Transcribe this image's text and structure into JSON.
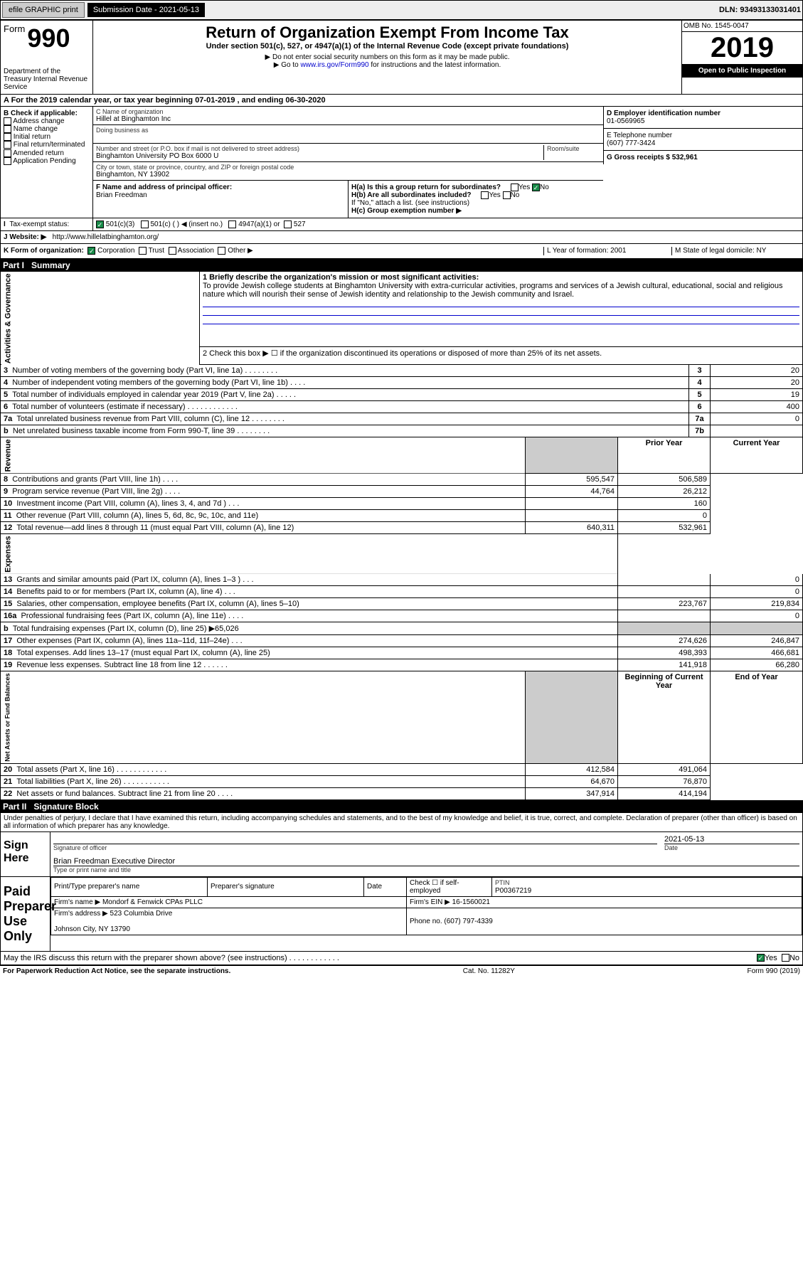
{
  "header": {
    "efile_label": "efile GRAPHIC print",
    "submission_label": "Submission Date - 2021-05-13",
    "dln_label": "DLN: 93493133031401",
    "omb": "OMB No. 1545-0047",
    "form_word": "Form",
    "form_number": "990",
    "title": "Return of Organization Exempt From Income Tax",
    "subtitle": "Under section 501(c), 527, or 4947(a)(1) of the Internal Revenue Code (except private foundations)",
    "note1": "▶ Do not enter social security numbers on this form as it may be made public.",
    "note2_prefix": "▶ Go to ",
    "note2_link": "www.irs.gov/Form990",
    "note2_suffix": " for instructions and the latest information.",
    "year": "2019",
    "open_public": "Open to Public Inspection",
    "dept": "Department of the Treasury\nInternal Revenue Service"
  },
  "rowA": "A   For the 2019 calendar year, or tax year beginning 07-01-2019    , and ending 06-30-2020",
  "boxB": {
    "label": "B Check if applicable:",
    "items": [
      "Address change",
      "Name change",
      "Initial return",
      "Final return/terminated",
      "Amended return",
      "Application Pending"
    ]
  },
  "boxC": {
    "name_label": "C Name of organization",
    "name": "Hillel at Binghamton Inc",
    "dba_label": "Doing business as",
    "addr_label": "Number and street (or P.O. box if mail is not delivered to street address)",
    "room_label": "Room/suite",
    "addr": "Binghamton University PO Box 6000 U",
    "city_label": "City or town, state or province, country, and ZIP or foreign postal code",
    "city": "Binghamton, NY  13902"
  },
  "boxD": {
    "label": "D Employer identification number",
    "value": "01-0569965"
  },
  "boxE": {
    "label": "E Telephone number",
    "value": "(607) 777-3424"
  },
  "boxG": {
    "label": "G Gross receipts $ 532,961"
  },
  "boxF": {
    "label": "F  Name and address of principal officer:",
    "name": "Brian Freedman"
  },
  "boxH": {
    "ha": "H(a)  Is this a group return for subordinates?",
    "hb": "H(b)  Are all subordinates included?",
    "hb_note": "If \"No,\" attach a list. (see instructions)",
    "hc": "H(c)  Group exemption number ▶",
    "yes": "Yes",
    "no": "No"
  },
  "boxI": {
    "label": "Tax-exempt status:",
    "c501c3": "501(c)(3)",
    "c501c": "501(c) (   ) ◀ (insert no.)",
    "c4947": "4947(a)(1) or",
    "c527": "527"
  },
  "boxJ": {
    "label": "J    Website: ▶",
    "url": "http://www.hillelatbinghamton.org/"
  },
  "boxK": {
    "label": "K Form of organization:",
    "corp": "Corporation",
    "trust": "Trust",
    "assoc": "Association",
    "other": "Other ▶",
    "L": "L Year of formation: 2001",
    "M": "M State of legal domicile: NY"
  },
  "part1": {
    "header_partno": "Part I",
    "header_title": "Summary",
    "line1_label": "1  Briefly describe the organization's mission or most significant activities:",
    "line1_text": "To provide Jewish college students at Binghamton University with extra-curricular activities, programs and services of a Jewish cultural, educational, social and religious nature which will nourish their sense of Jewish identity and relationship to the Jewish community and Israel.",
    "line2": "2    Check this box ▶ ☐  if the organization discontinued its operations or disposed of more than 25% of its net assets.",
    "rows_ag": [
      {
        "n": "3",
        "label": "Number of voting members of the governing body (Part VI, line 1a)  .    .    .    .    .    .    .    .",
        "box": "3",
        "val": "20"
      },
      {
        "n": "4",
        "label": "Number of independent voting members of the governing body (Part VI, line 1b)  .    .    .    .",
        "box": "4",
        "val": "20"
      },
      {
        "n": "5",
        "label": "Total number of individuals employed in calendar year 2019 (Part V, line 2a)  .    .    .    .    .",
        "box": "5",
        "val": "19"
      },
      {
        "n": "6",
        "label": "Total number of volunteers (estimate if necessary)   .    .    .    .    .    .    .    .    .    .    .    .",
        "box": "6",
        "val": "400"
      },
      {
        "n": "7a",
        "label": "Total unrelated business revenue from Part VIII, column (C), line 12  .    .    .    .    .    .    .    .",
        "box": "7a",
        "val": "0"
      },
      {
        "n": "b",
        "label": "Net unrelated business taxable income from Form 990-T, line 39   .    .    .    .    .    .    .    .",
        "box": "7b",
        "val": ""
      }
    ],
    "pycol": "Prior Year",
    "cycol": "Current Year",
    "rows_rev": [
      {
        "n": "8",
        "label": "Contributions and grants (Part VIII, line 1h)   .    .    .    .",
        "py": "595,547",
        "cy": "506,589"
      },
      {
        "n": "9",
        "label": "Program service revenue (Part VIII, line 2g)  .    .    .    .",
        "py": "44,764",
        "cy": "26,212"
      },
      {
        "n": "10",
        "label": "Investment income (Part VIII, column (A), lines 3, 4, and 7d )   .    .    .",
        "py": "",
        "cy": "160"
      },
      {
        "n": "11",
        "label": "Other revenue (Part VIII, column (A), lines 5, 6d, 8c, 9c, 10c, and 11e)",
        "py": "",
        "cy": "0"
      },
      {
        "n": "12",
        "label": "Total revenue—add lines 8 through 11 (must equal Part VIII, column (A), line 12)",
        "py": "640,311",
        "cy": "532,961"
      }
    ],
    "rows_exp": [
      {
        "n": "13",
        "label": "Grants and similar amounts paid (Part IX, column (A), lines 1–3 )  .    .    .",
        "py": "",
        "cy": "0"
      },
      {
        "n": "14",
        "label": "Benefits paid to or for members (Part IX, column (A), line 4)  .    .    .",
        "py": "",
        "cy": "0"
      },
      {
        "n": "15",
        "label": "Salaries, other compensation, employee benefits (Part IX, column (A), lines 5–10)",
        "py": "223,767",
        "cy": "219,834"
      },
      {
        "n": "16a",
        "label": "Professional fundraising fees (Part IX, column (A), line 11e)  .    .    .    .",
        "py": "",
        "cy": "0"
      },
      {
        "n": "b",
        "label": "Total fundraising expenses (Part IX, column (D), line 25) ▶65,026",
        "py": "grey",
        "cy": "grey"
      },
      {
        "n": "17",
        "label": "Other expenses (Part IX, column (A), lines 11a–11d, 11f–24e)   .    .    .",
        "py": "274,626",
        "cy": "246,847"
      },
      {
        "n": "18",
        "label": "Total expenses. Add lines 13–17 (must equal Part IX, column (A), line 25)",
        "py": "498,393",
        "cy": "466,681"
      },
      {
        "n": "19",
        "label": "Revenue less expenses. Subtract line 18 from line 12 .    .    .    .    .    .",
        "py": "141,918",
        "cy": "66,280"
      }
    ],
    "bocy": "Beginning of Current Year",
    "eoy": "End of Year",
    "rows_net": [
      {
        "n": "20",
        "label": "Total assets (Part X, line 16)  .    .    .    .    .    .    .    .    .    .    .    .",
        "py": "412,584",
        "cy": "491,064"
      },
      {
        "n": "21",
        "label": "Total liabilities (Part X, line 26)  .    .    .    .    .    .    .    .    .    .    .",
        "py": "64,670",
        "cy": "76,870"
      },
      {
        "n": "22",
        "label": "Net assets or fund balances. Subtract line 21 from line 20   .    .    .    .",
        "py": "347,914",
        "cy": "414,194"
      }
    ],
    "side_ag": "Activities & Governance",
    "side_rev": "Revenue",
    "side_exp": "Expenses",
    "side_net": "Net Assets or Fund Balances"
  },
  "part2": {
    "header_partno": "Part II",
    "header_title": "Signature Block",
    "penalties": "Under penalties of perjury, I declare that I have examined this return, including accompanying schedules and statements, and to the best of my knowledge and belief, it is true, correct, and complete. Declaration of preparer (other than officer) is based on all information of which preparer has any knowledge.",
    "sign_here": "Sign Here",
    "sig_officer": "Signature of officer",
    "sig_date": "2021-05-13",
    "sig_date_label": "Date",
    "officer_name": "Brian Freedman  Executive Director",
    "officer_type": "Type or print name and title",
    "paid_prep": "Paid Preparer Use Only",
    "prep_name_label": "Print/Type preparer's name",
    "prep_sig_label": "Preparer's signature",
    "prep_date_label": "Date",
    "prep_check": "Check ☐  if self-employed",
    "ptin_label": "PTIN",
    "ptin": "P00367219",
    "firm_name_label": "Firm's name    ▶",
    "firm_name": "Mondorf & Fenwick CPAs PLLC",
    "firm_ein_label": "Firm's EIN ▶",
    "firm_ein": "16-1560021",
    "firm_addr_label": "Firm's address ▶",
    "firm_addr": "523 Columbia Drive",
    "firm_city": "Johnson City, NY  13790",
    "phone_label": "Phone no.",
    "phone": "(607) 797-4339",
    "discuss": "May the IRS discuss this return with the preparer shown above? (see instructions)   .    .    .    .    .    .    .    .    .    .    .    .",
    "yes": "Yes",
    "no": "No"
  },
  "footer": {
    "left": "For Paperwork Reduction Act Notice, see the separate instructions.",
    "mid": "Cat. No. 11282Y",
    "right": "Form 990 (2019)"
  }
}
